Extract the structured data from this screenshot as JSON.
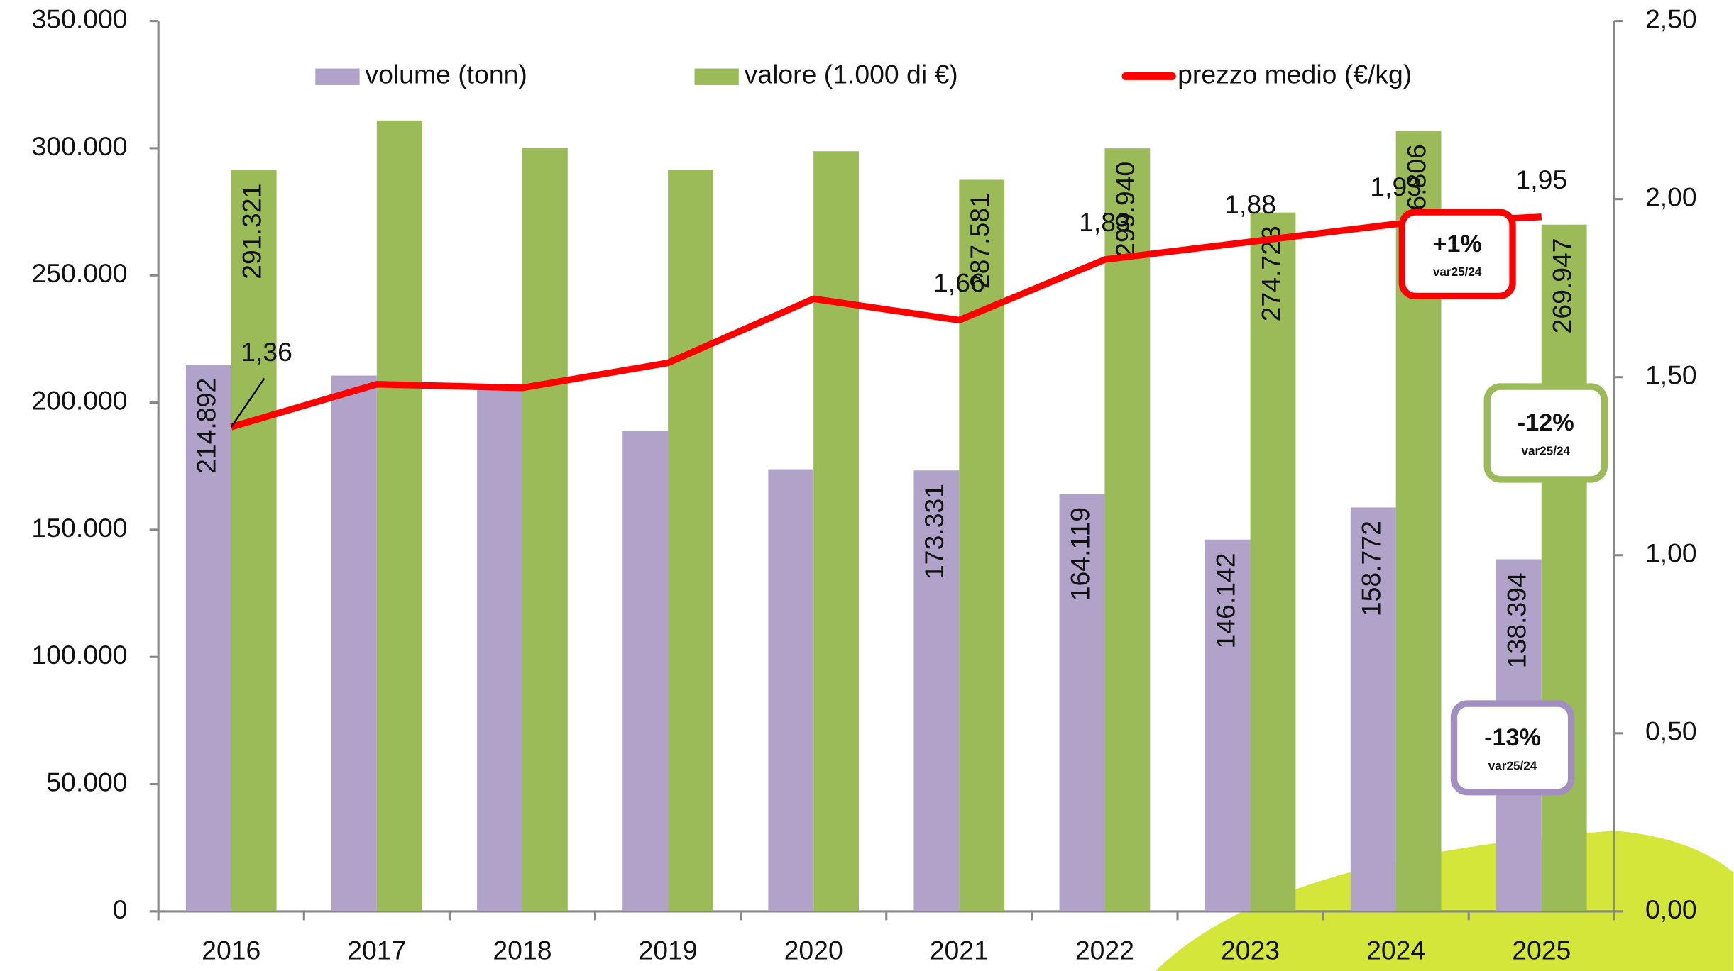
{
  "chart_data": {
    "type": "bar-line",
    "categories": [
      "2016",
      "2017",
      "2018",
      "2019",
      "2020",
      "2021",
      "2022",
      "2023",
      "2024",
      "2025"
    ],
    "series": [
      {
        "name": "volume (tonn)",
        "type": "bar",
        "color": "#b0a2c8",
        "values": [
          214892,
          210600,
          206000,
          188900,
          173800,
          173331,
          164119,
          146142,
          158772,
          138394
        ],
        "value_labels": [
          "214.892",
          null,
          null,
          null,
          null,
          "173.331",
          "164.119",
          "146.142",
          "158.772",
          "138.394"
        ]
      },
      {
        "name": "valore (1.000 di €)",
        "type": "bar",
        "color": "#9bbb59",
        "values": [
          291321,
          310900,
          300100,
          291400,
          298800,
          287581,
          299940,
          274723,
          306806,
          269947
        ],
        "value_labels": [
          "291.321",
          null,
          null,
          null,
          null,
          "287.581",
          "299.940",
          "274.723",
          "306.806",
          "269.947"
        ]
      },
      {
        "name": "prezzo medio (€/kg)",
        "type": "line",
        "axis": "y2",
        "color": "#ff0000",
        "values": [
          1.36,
          1.48,
          1.47,
          1.54,
          1.72,
          1.66,
          1.83,
          1.88,
          1.93,
          1.95
        ],
        "value_labels": [
          "1,36",
          null,
          null,
          null,
          null,
          "1,66",
          "1,83",
          "1,88",
          "1,93",
          "1,95"
        ]
      }
    ],
    "ylim": [
      0,
      350000
    ],
    "yticks": [
      0,
      {
        "value": 50000,
        "label": "50.000"
      },
      {
        "value": 100000,
        "label": "100.000"
      },
      {
        "value": 150000,
        "label": "150.000"
      },
      {
        "value": 200000,
        "label": "200.000"
      },
      {
        "value": 250000,
        "label": "250.000"
      },
      {
        "value": 300000,
        "label": "300.000"
      },
      {
        "value": 350000,
        "label": "350.000"
      }
    ],
    "y2lim": [
      0,
      2.5
    ],
    "y2ticks": [
      {
        "value": 0,
        "label": "0,00"
      },
      {
        "value": 0.5,
        "label": "0,50"
      },
      {
        "value": 1,
        "label": "1,00"
      },
      {
        "value": 1.5,
        "label": "1,50"
      },
      {
        "value": 2,
        "label": "2,00"
      },
      {
        "value": 2.5,
        "label": "2,50"
      }
    ],
    "legend": "top",
    "annotations": [
      {
        "text": "+1%",
        "subtext": "var25/24",
        "color": "#ff0000"
      },
      {
        "text": "-12%",
        "subtext": "var25/24",
        "color": "#9bbb59"
      },
      {
        "text": "-13%",
        "subtext": "var25/24",
        "color": "#a28fc0"
      }
    ]
  }
}
